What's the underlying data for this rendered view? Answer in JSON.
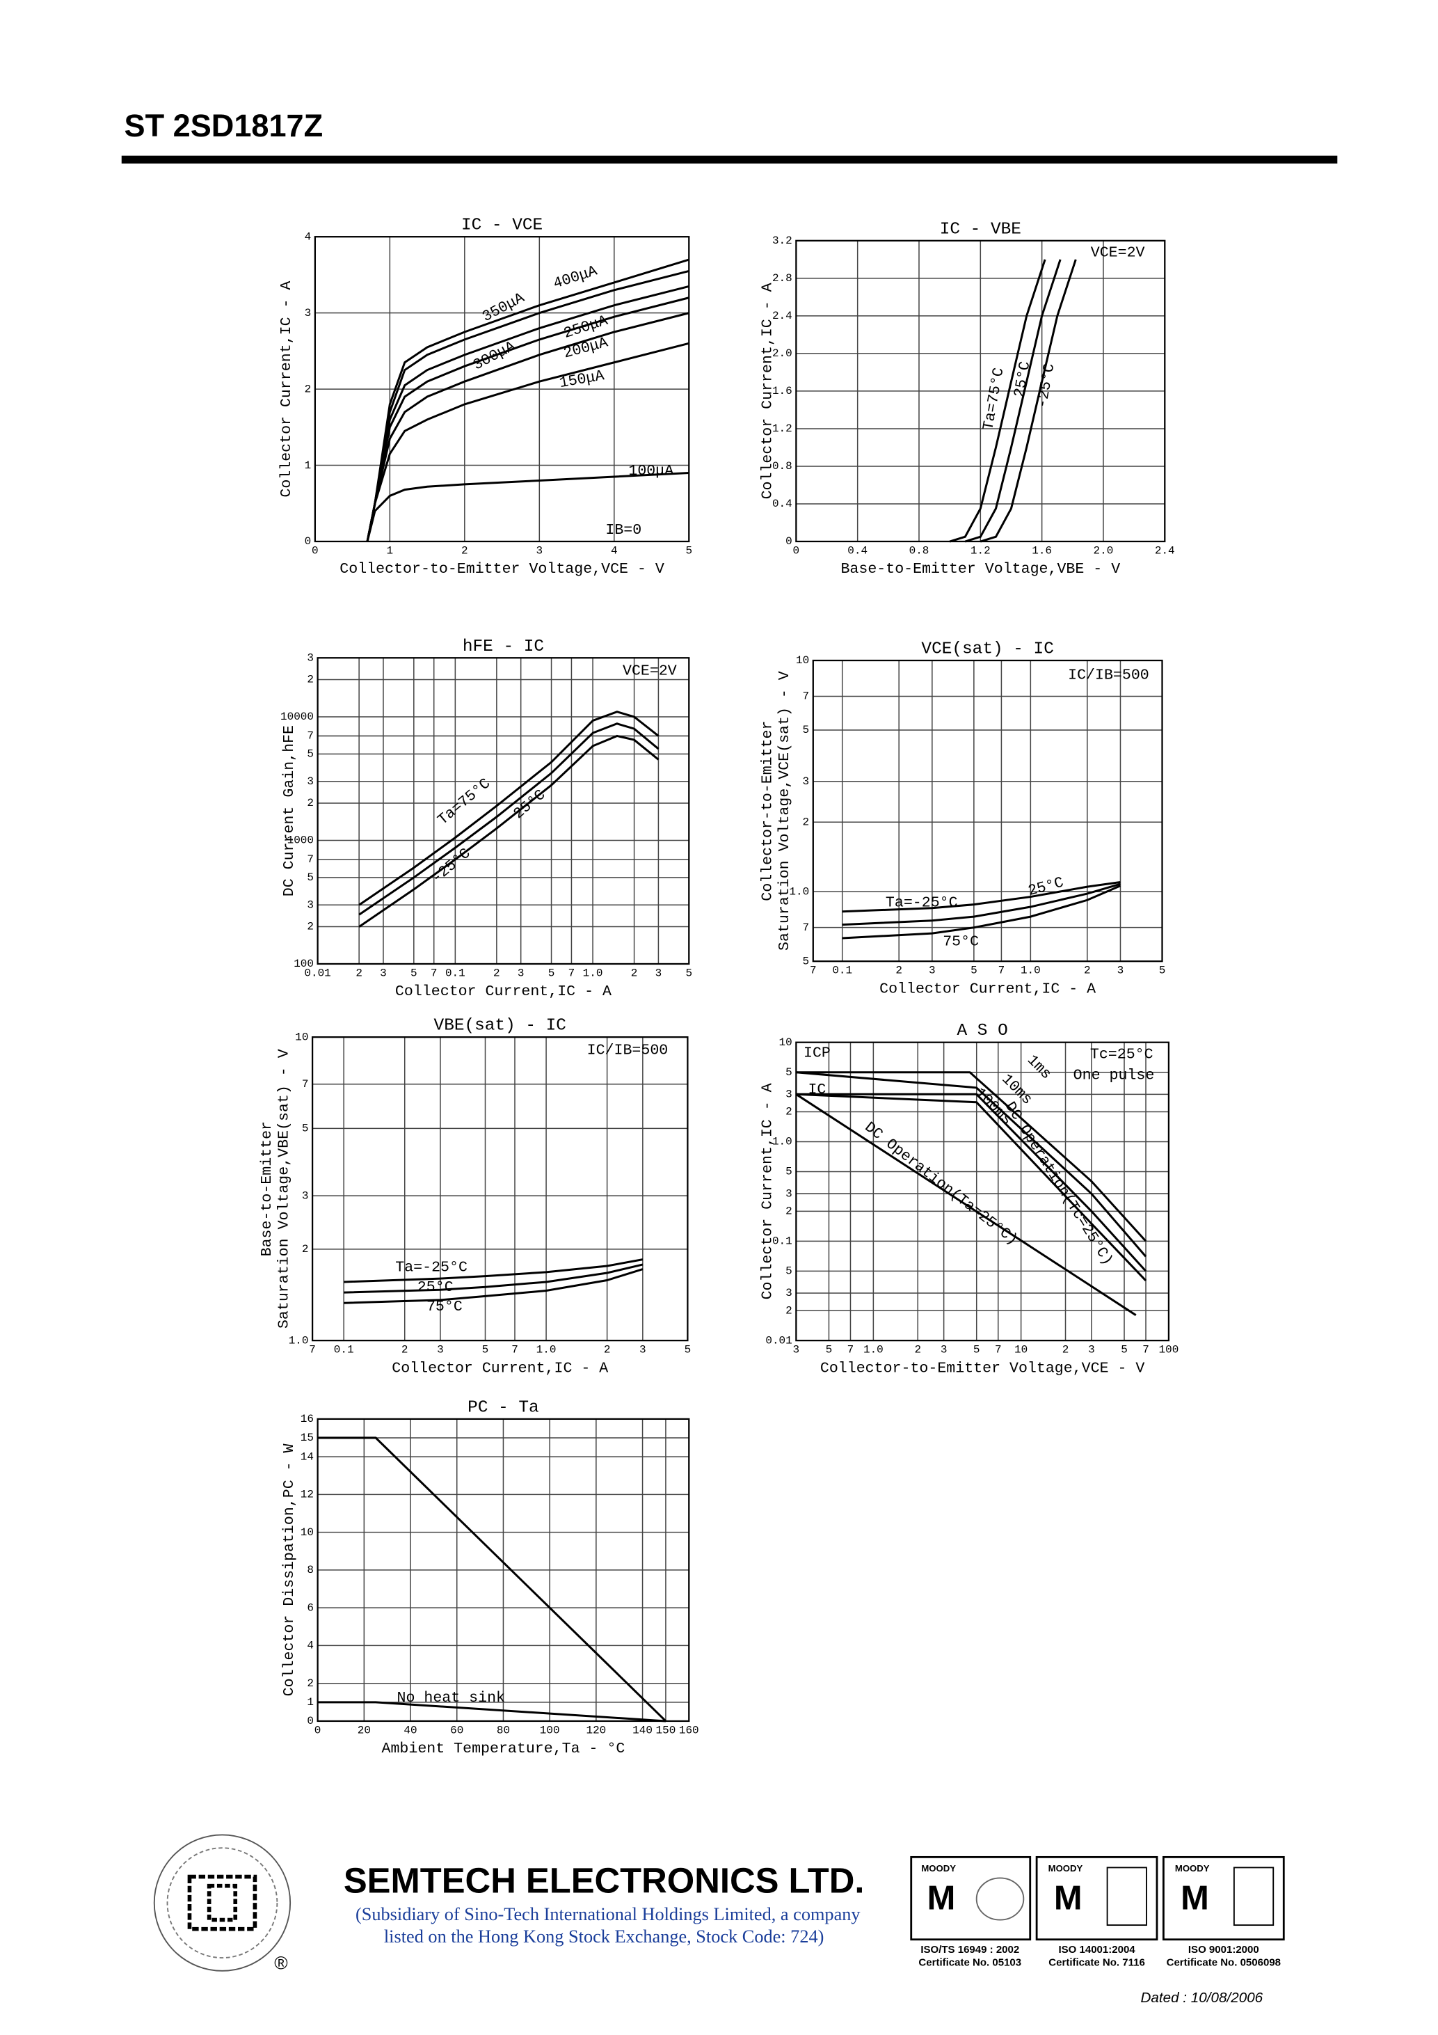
{
  "header": {
    "title": "ST 2SD1817Z"
  },
  "chart_data": [
    {
      "type": "line",
      "title": "IC - VCE",
      "x_label": "Collector-to-Emitter Voltage,VCE - V",
      "y_label": "Collector Current,IC - A",
      "xlim": [
        0,
        5
      ],
      "ylim": [
        0,
        4
      ],
      "xticks": [
        0,
        1,
        2,
        3,
        4,
        5
      ],
      "yticks": [
        0,
        1,
        2,
        3,
        4
      ],
      "grid": true,
      "color": "#000000",
      "series": [
        {
          "name": "400μA",
          "x": [
            0.7,
            0.8,
            1,
            1.2,
            1.5,
            2,
            3,
            4,
            5
          ],
          "values": [
            0,
            0.5,
            1.8,
            2.35,
            2.55,
            2.75,
            3.1,
            3.4,
            3.7
          ]
        },
        {
          "name": "350μA",
          "x": [
            0.7,
            0.8,
            1,
            1.2,
            1.5,
            2,
            3,
            4,
            5
          ],
          "values": [
            0,
            0.5,
            1.7,
            2.25,
            2.45,
            2.65,
            3.0,
            3.3,
            3.55
          ]
        },
        {
          "name": "300μA",
          "x": [
            0.7,
            0.8,
            1,
            1.2,
            1.5,
            2,
            3,
            4,
            5
          ],
          "values": [
            0,
            0.5,
            1.6,
            2.05,
            2.25,
            2.45,
            2.8,
            3.1,
            3.35
          ]
        },
        {
          "name": "250μA",
          "x": [
            0.7,
            0.8,
            1,
            1.2,
            1.5,
            2,
            3,
            4,
            5
          ],
          "values": [
            0,
            0.5,
            1.5,
            1.9,
            2.1,
            2.3,
            2.65,
            2.95,
            3.2
          ]
        },
        {
          "name": "200μA",
          "x": [
            0.7,
            0.8,
            1,
            1.2,
            1.5,
            2,
            3,
            4,
            5
          ],
          "values": [
            0,
            0.5,
            1.35,
            1.7,
            1.9,
            2.1,
            2.45,
            2.75,
            3.0
          ]
        },
        {
          "name": "150μA",
          "x": [
            0.7,
            0.8,
            1,
            1.2,
            1.5,
            2,
            3,
            4,
            5
          ],
          "values": [
            0,
            0.5,
            1.15,
            1.45,
            1.6,
            1.8,
            2.1,
            2.35,
            2.6
          ]
        },
        {
          "name": "100μA",
          "x": [
            0.7,
            0.8,
            1,
            1.2,
            1.5,
            2,
            3,
            4,
            5
          ],
          "values": [
            0,
            0.4,
            0.6,
            0.68,
            0.72,
            0.75,
            0.8,
            0.85,
            0.9
          ]
        }
      ],
      "annotations": [
        "IB=0"
      ]
    },
    {
      "type": "line",
      "title": "IC - VBE",
      "x_label": "Base-to-Emitter Voltage,VBE - V",
      "y_label": "Collector Current,IC - A",
      "xlim": [
        0,
        2.4
      ],
      "ylim": [
        0,
        3.2
      ],
      "xticks": [
        0,
        0.4,
        0.8,
        1.2,
        1.6,
        {
          "value": 2,
          "label": "2.0"
        },
        2.4
      ],
      "yticks": [
        0,
        0.4,
        0.8,
        1.2,
        1.6,
        {
          "value": 2,
          "label": "2.0"
        },
        2.4,
        2.8,
        3.2
      ],
      "grid": true,
      "color": "#000000",
      "series": [
        {
          "name": "Ta=75°C",
          "x": [
            1.0,
            1.1,
            1.2,
            1.3,
            1.4,
            1.5,
            1.62
          ],
          "values": [
            0,
            0.05,
            0.35,
            1.0,
            1.7,
            2.4,
            3.0
          ]
        },
        {
          "name": "25°C",
          "x": [
            1.1,
            1.2,
            1.3,
            1.4,
            1.5,
            1.6,
            1.72
          ],
          "values": [
            0,
            0.05,
            0.35,
            1.0,
            1.7,
            2.4,
            3.0
          ]
        },
        {
          "name": "-25°C",
          "x": [
            1.2,
            1.3,
            1.4,
            1.5,
            1.6,
            1.7,
            1.82
          ],
          "values": [
            0,
            0.05,
            0.35,
            1.0,
            1.7,
            2.4,
            3.0
          ]
        }
      ],
      "annotations": [
        "VCE=2V"
      ]
    },
    {
      "type": "line",
      "title": "hFE - IC",
      "x_label": "Collector Current,IC - A",
      "y_label": "DC Current Gain,hFE",
      "x_log": true,
      "y_log": true,
      "xlim": [
        0.01,
        5
      ],
      "ylim": [
        100,
        30000
      ],
      "xticks": [
        0.01,
        {
          "value": 0.02,
          "label": "2"
        },
        {
          "value": 0.03,
          "label": "3"
        },
        {
          "value": 0.05,
          "label": "5"
        },
        {
          "value": 0.07,
          "label": "7"
        },
        0.1,
        {
          "value": 0.2,
          "label": "2"
        },
        {
          "value": 0.3,
          "label": "3"
        },
        {
          "value": 0.5,
          "label": "5"
        },
        {
          "value": 0.7,
          "label": "7"
        },
        {
          "value": 1,
          "label": "1.0"
        },
        2,
        3,
        5
      ],
      "yticks": [
        100,
        {
          "value": 200,
          "label": "2"
        },
        {
          "value": 300,
          "label": "3"
        },
        {
          "value": 500,
          "label": "5"
        },
        {
          "value": 700,
          "label": "7"
        },
        1000,
        {
          "value": 2000,
          "label": "2"
        },
        {
          "value": 3000,
          "label": "3"
        },
        {
          "value": 5000,
          "label": "5"
        },
        {
          "value": 7000,
          "label": "7"
        },
        10000,
        {
          "value": 20000,
          "label": "2"
        },
        {
          "value": 30000,
          "label": "3"
        }
      ],
      "grid": true,
      "color": "#000000",
      "series": [
        {
          "name": "Ta=75°C",
          "x": [
            0.02,
            0.05,
            0.1,
            0.2,
            0.5,
            1,
            1.5,
            2,
            3
          ],
          "values": [
            300,
            600,
            1050,
            1900,
            4300,
            9300,
            11000,
            10000,
            7000
          ]
        },
        {
          "name": "25°C",
          "x": [
            0.02,
            0.05,
            0.1,
            0.2,
            0.5,
            1,
            1.5,
            2,
            3
          ],
          "values": [
            250,
            500,
            870,
            1550,
            3500,
            7400,
            8800,
            8000,
            5500
          ]
        },
        {
          "name": "-25°C",
          "x": [
            0.02,
            0.05,
            0.1,
            0.2,
            0.5,
            1,
            1.5,
            2,
            3
          ],
          "values": [
            200,
            400,
            700,
            1250,
            2800,
            5800,
            7000,
            6500,
            4500
          ]
        }
      ],
      "annotations": [
        "VCE=2V"
      ]
    },
    {
      "type": "line",
      "title": "VCE(sat) - IC",
      "x_label": "Collector Current,IC - A",
      "y_label": [
        "Collector-to-Emitter",
        "Saturation Voltage,VCE(sat) - V"
      ],
      "x_log": true,
      "y_log": true,
      "xlim": [
        0.07,
        5
      ],
      "ylim": [
        0.5,
        10
      ],
      "xticks": [
        {
          "value": 0.07,
          "label": "7"
        },
        0.1,
        {
          "value": 0.2,
          "label": "2"
        },
        {
          "value": 0.3,
          "label": "3"
        },
        {
          "value": 0.5,
          "label": "5"
        },
        {
          "value": 0.7,
          "label": "7"
        },
        {
          "value": 1,
          "label": "1.0"
        },
        2,
        3,
        5
      ],
      "yticks": [
        {
          "value": 0.5,
          "label": "5"
        },
        {
          "value": 0.7,
          "label": "7"
        },
        {
          "value": 1,
          "label": "1.0"
        },
        2,
        3,
        5,
        7,
        10
      ],
      "grid": true,
      "color": "#000000",
      "series": [
        {
          "name": "Ta=-25°C",
          "x": [
            0.1,
            0.3,
            0.5,
            1,
            2,
            3
          ],
          "values": [
            0.82,
            0.85,
            0.88,
            0.95,
            1.05,
            1.1
          ]
        },
        {
          "name": "25°C",
          "x": [
            0.1,
            0.3,
            0.5,
            1,
            2,
            3
          ],
          "values": [
            0.72,
            0.75,
            0.78,
            0.86,
            0.98,
            1.08
          ]
        },
        {
          "name": "75°C",
          "x": [
            0.1,
            0.3,
            0.5,
            1,
            2,
            3
          ],
          "values": [
            0.63,
            0.66,
            0.7,
            0.78,
            0.92,
            1.06
          ]
        }
      ],
      "annotations": [
        "IC/IB=500"
      ]
    },
    {
      "type": "line",
      "title": "VBE(sat) - IC",
      "x_label": "Collector Current,IC - A",
      "y_label": [
        "Base-to-Emitter",
        "Saturation Voltage,VBE(sat) - V"
      ],
      "x_log": true,
      "y_log": true,
      "xlim": [
        0.07,
        5
      ],
      "ylim": [
        1,
        10
      ],
      "xticks": [
        {
          "value": 0.07,
          "label": "7"
        },
        0.1,
        {
          "value": 0.2,
          "label": "2"
        },
        {
          "value": 0.3,
          "label": "3"
        },
        {
          "value": 0.5,
          "label": "5"
        },
        {
          "value": 0.7,
          "label": "7"
        },
        {
          "value": 1,
          "label": "1.0"
        },
        2,
        3,
        5
      ],
      "yticks": [
        {
          "value": 1,
          "label": "1.0"
        },
        2,
        3,
        5,
        7,
        10
      ],
      "grid": true,
      "color": "#000000",
      "series": [
        {
          "name": "Ta=-25°C",
          "x": [
            0.1,
            0.3,
            0.5,
            1,
            2,
            3
          ],
          "values": [
            1.56,
            1.6,
            1.63,
            1.68,
            1.76,
            1.85
          ]
        },
        {
          "name": "25°C",
          "x": [
            0.1,
            0.3,
            0.5,
            1,
            2,
            3
          ],
          "values": [
            1.44,
            1.47,
            1.5,
            1.56,
            1.67,
            1.78
          ]
        },
        {
          "name": "75°C",
          "x": [
            0.1,
            0.3,
            0.5,
            1,
            2,
            3
          ],
          "values": [
            1.33,
            1.36,
            1.4,
            1.46,
            1.58,
            1.72
          ]
        }
      ],
      "annotations": [
        "IC/IB=500"
      ]
    },
    {
      "type": "line",
      "title": "A S O",
      "x_label": "Collector-to-Emitter Voltage,VCE - V",
      "y_label": "Collector Current,IC - A",
      "x_log": true,
      "y_log": true,
      "xlim": [
        0.3,
        100
      ],
      "ylim": [
        0.01,
        10
      ],
      "xticks": [
        {
          "value": 0.3,
          "label": "3"
        },
        {
          "value": 0.5,
          "label": "5"
        },
        {
          "value": 0.7,
          "label": "7"
        },
        {
          "value": 1,
          "label": "1.0"
        },
        2,
        3,
        5,
        7,
        10,
        {
          "value": 20,
          "label": "2"
        },
        {
          "value": 30,
          "label": "3"
        },
        {
          "value": 50,
          "label": "5"
        },
        {
          "value": 70,
          "label": "7"
        },
        100
      ],
      "yticks": [
        0.01,
        {
          "value": 0.02,
          "label": "2"
        },
        {
          "value": 0.03,
          "label": "3"
        },
        {
          "value": 0.05,
          "label": "5"
        },
        0.1,
        {
          "value": 0.2,
          "label": "2"
        },
        {
          "value": 0.3,
          "label": "3"
        },
        {
          "value": 0.5,
          "label": "5"
        },
        {
          "value": 1,
          "label": "1.0"
        },
        2,
        3,
        5,
        10
      ],
      "grid": true,
      "color": "#000000",
      "series": [
        {
          "name": "1ms",
          "x": [
            0.3,
            4.5,
            30,
            70
          ],
          "values": [
            5,
            5,
            0.4,
            0.1
          ]
        },
        {
          "name": "10ms",
          "x": [
            0.3,
            5,
            30,
            70
          ],
          "values": [
            5,
            3.5,
            0.3,
            0.07
          ]
        },
        {
          "name": "100ms",
          "x": [
            0.3,
            5,
            30,
            70
          ],
          "values": [
            3,
            3,
            0.2,
            0.05
          ]
        },
        {
          "name": "DC Operation(Tc=25°C)",
          "x": [
            0.3,
            5,
            30,
            70
          ],
          "values": [
            3,
            2.5,
            0.15,
            0.04
          ]
        },
        {
          "name": "DC Operation(Ta=25°C)",
          "x": [
            0.3,
            60
          ],
          "values": [
            3,
            0.018
          ]
        }
      ],
      "annotations": [
        "ICP",
        "IC",
        "Tc=25°C",
        "One pulse"
      ]
    },
    {
      "type": "line",
      "title": "PC - Ta",
      "x_label": "Ambient Temperature,Ta - °C",
      "y_label": "Collector Dissipation,PC - W",
      "xlim": [
        0,
        160
      ],
      "ylim": [
        0,
        16
      ],
      "xticks": [
        0,
        20,
        40,
        60,
        80,
        100,
        120,
        140,
        150,
        160
      ],
      "yticks": [
        0,
        1,
        2,
        4,
        6,
        8,
        10,
        12,
        14,
        15,
        16
      ],
      "grid": true,
      "color": "#000000",
      "series": [
        {
          "x": [
            0,
            25,
            150
          ],
          "values": [
            15,
            15,
            0
          ]
        },
        {
          "name": "No heat sink",
          "x": [
            0,
            25,
            150
          ],
          "values": [
            1,
            1,
            0
          ]
        }
      ],
      "annotations": []
    }
  ],
  "footer": {
    "company": "SEMTECH ELECTRONICS LTD.",
    "note_line1": "(Subsidiary of Sino-Tech International Holdings Limited, a company",
    "note_line2": "listed on the Hong Kong Stock Exchange, Stock Code: 724)",
    "registered": "®",
    "certs": [
      {
        "brand": "MOODY",
        "standard": "ISO/TS 16949 : 2002",
        "number": "Certificate No. 05103"
      },
      {
        "brand": "MOODY",
        "standard": "ISO 14001:2004",
        "number": "Certificate No. 7116"
      },
      {
        "brand": "MOODY",
        "standard": "ISO 9001:2000",
        "number": "Certificate No. 0506098"
      }
    ],
    "dated": "Dated : 10/08/2006"
  }
}
